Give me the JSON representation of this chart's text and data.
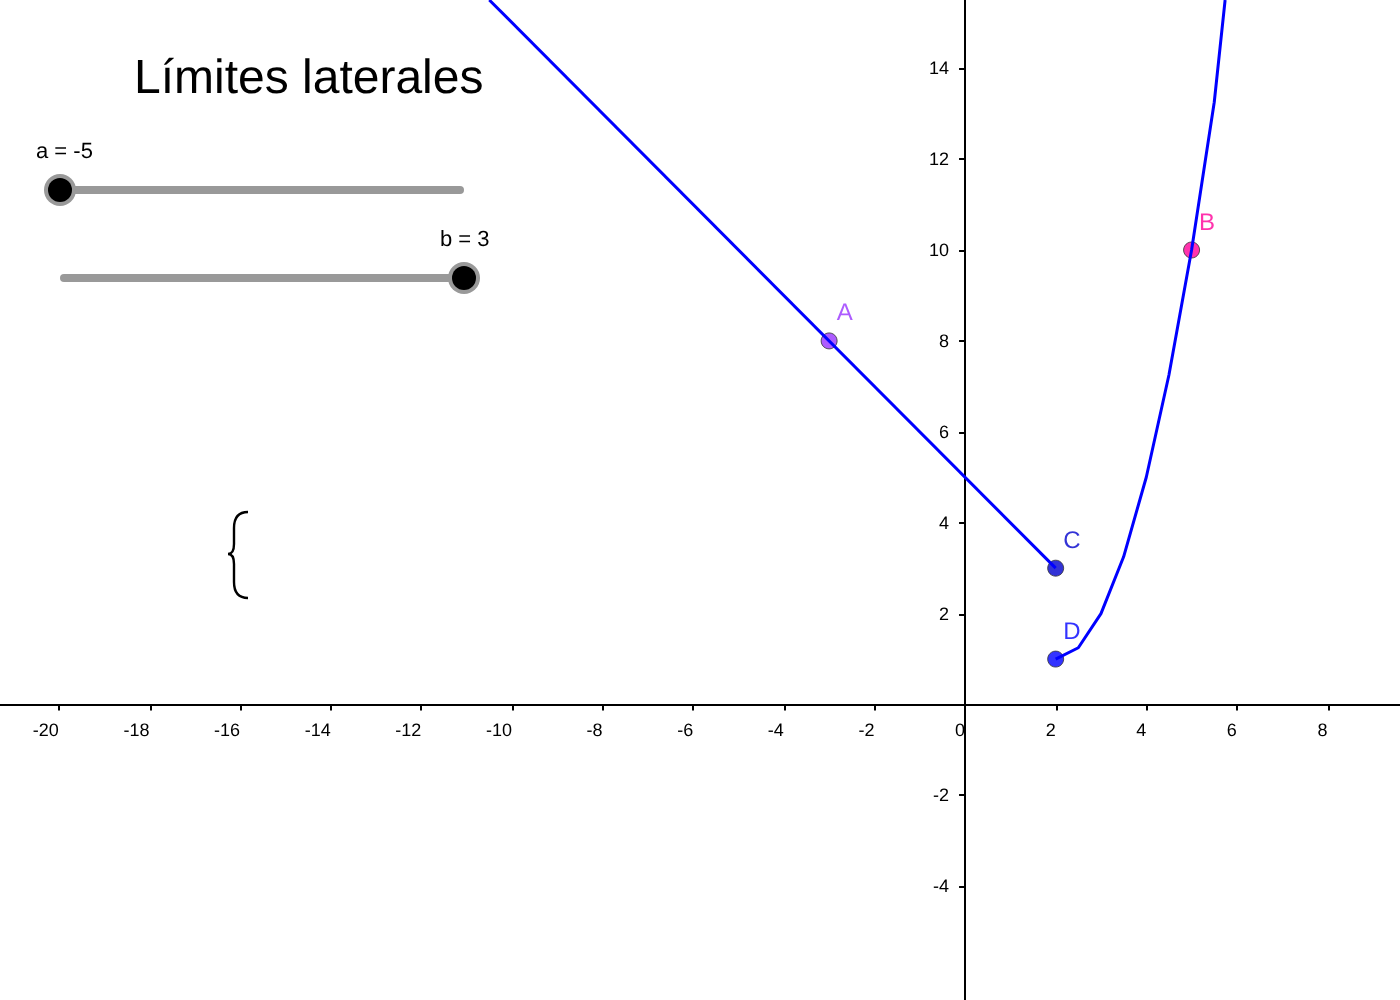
{
  "chart_data": {
    "type": "line",
    "title": "Límites laterales",
    "annotations": [
      "a = -5",
      "b = 3"
    ],
    "xlim": [
      -21.3,
      9.6
    ],
    "ylim": [
      -6.5,
      15.5
    ],
    "xticks": [
      -20,
      -18,
      -16,
      -14,
      -12,
      -10,
      -8,
      -6,
      -4,
      -2,
      0,
      2,
      4,
      6,
      8
    ],
    "yticks": [
      -4,
      -2,
      2,
      4,
      6,
      8,
      10,
      12,
      14
    ],
    "grid": false,
    "series": [
      {
        "color": "#0000ff",
        "x": [
          -10.5,
          2
        ],
        "values": [
          15.5,
          3
        ],
        "marker": "none"
      },
      {
        "color": "#0000ff",
        "x": [
          2,
          2.5,
          3,
          3.5,
          4,
          4.5,
          5,
          5.5,
          5.74
        ],
        "values": [
          1,
          1.25,
          2,
          3.25,
          5,
          7.25,
          10,
          13.25,
          15.5
        ],
        "marker": "none"
      },
      {
        "type": "scatter",
        "color": "#9933ff",
        "x": [
          -3
        ],
        "values": [
          8
        ],
        "value_labels": [
          "A"
        ],
        "marker": "circle"
      },
      {
        "type": "scatter",
        "color": "#ff0099",
        "x": [
          5
        ],
        "values": [
          10
        ],
        "value_labels": [
          "B"
        ],
        "marker": "circle"
      },
      {
        "type": "scatter",
        "color": "#0000cc",
        "x": [
          2
        ],
        "values": [
          3
        ],
        "value_labels": [
          "C"
        ],
        "marker": "circle"
      },
      {
        "type": "scatter",
        "color": "#0000ff",
        "x": [
          2
        ],
        "values": [
          1
        ],
        "value_labels": [
          "D"
        ],
        "marker": "circle"
      }
    ]
  }
}
